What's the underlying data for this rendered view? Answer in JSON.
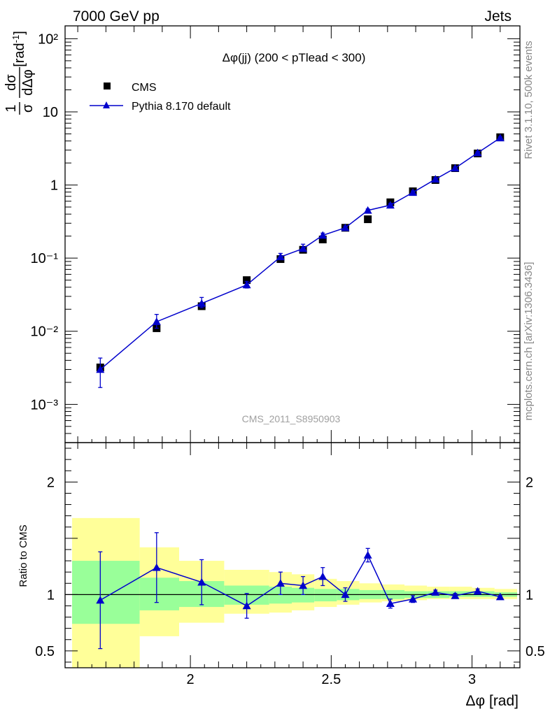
{
  "header": {
    "left": "7000 GeV pp",
    "right": "Jets"
  },
  "side_text": {
    "rivet": "Rivet 3.1.10,  500k events",
    "mcplots": "mcplots.cern.ch [arXiv:1306.3436]"
  },
  "watermark": "CMS_2011_S8950903",
  "colors": {
    "data": "#000000",
    "mc": "#0000cc",
    "band_inner": "#99ff99",
    "band_outer": "#ffff99"
  },
  "chart_data": [
    {
      "type": "scatter",
      "panel": "main",
      "title": "Δφ(jj) (200 < pTlead <  300)",
      "ylabel": "1/σ dσ/dΔφ [rad⁻¹]",
      "yscale": "log",
      "ylim": [
        0.0003,
        150
      ],
      "xlim": [
        1.555,
        3.17
      ],
      "ytick_labels": [
        "10⁻³",
        "10⁻²",
        "10⁻¹",
        "1",
        "10",
        "10²"
      ],
      "legend": [
        "CMS",
        "Pythia 8.170 default"
      ],
      "legend_position": "top-left",
      "series": [
        {
          "name": "CMS",
          "marker": "square",
          "x": [
            1.68,
            1.88,
            2.04,
            2.2,
            2.32,
            2.4,
            2.47,
            2.55,
            2.63,
            2.71,
            2.79,
            2.87,
            2.94,
            3.02,
            3.1
          ],
          "y": [
            0.0032,
            0.011,
            0.022,
            0.05,
            0.097,
            0.13,
            0.18,
            0.26,
            0.34,
            0.58,
            0.82,
            1.17,
            1.7,
            2.7,
            4.5
          ]
        },
        {
          "name": "Pythia 8.170 default",
          "marker": "triangle",
          "x": [
            1.68,
            1.88,
            2.04,
            2.2,
            2.32,
            2.4,
            2.47,
            2.55,
            2.63,
            2.71,
            2.79,
            2.87,
            2.94,
            3.02,
            3.1
          ],
          "y": [
            0.003,
            0.0135,
            0.024,
            0.043,
            0.104,
            0.135,
            0.205,
            0.26,
            0.45,
            0.53,
            0.79,
            1.2,
            1.7,
            2.75,
            4.4
          ],
          "err_low": [
            0.0013,
            0.0025,
            0.003,
            0.004,
            0.008,
            0.01,
            0.01,
            0.015,
            0.02,
            0.03,
            0.04,
            0.05,
            0.06,
            0.1,
            0.15
          ],
          "err_high": [
            0.0013,
            0.0035,
            0.005,
            0.005,
            0.012,
            0.02,
            0.015,
            0.015,
            0.02,
            0.03,
            0.04,
            0.05,
            0.06,
            0.1,
            0.15
          ]
        }
      ]
    },
    {
      "type": "line",
      "panel": "ratio",
      "ylabel": "Ratio to CMS",
      "xlabel": "Δφ [rad]",
      "ylim": [
        0.35,
        2.35
      ],
      "yticks": [
        0.5,
        1,
        2
      ],
      "ytick_labels": [
        "0.5",
        "1",
        "2"
      ],
      "xticks": [
        2,
        2.5,
        3
      ],
      "xtick_labels": [
        "2",
        "2.5",
        "3"
      ],
      "reference_line": 1,
      "bands": [
        {
          "x0": 1.58,
          "x1": 1.82,
          "inner": [
            0.74,
            1.3
          ],
          "outer": [
            0.33,
            1.68
          ]
        },
        {
          "x0": 1.82,
          "x1": 1.96,
          "inner": [
            0.86,
            1.15
          ],
          "outer": [
            0.63,
            1.42
          ]
        },
        {
          "x0": 1.96,
          "x1": 2.12,
          "inner": [
            0.89,
            1.12
          ],
          "outer": [
            0.75,
            1.3
          ]
        },
        {
          "x0": 2.12,
          "x1": 2.28,
          "inner": [
            0.91,
            1.08
          ],
          "outer": [
            0.83,
            1.22
          ]
        },
        {
          "x0": 2.28,
          "x1": 2.36,
          "inner": [
            0.92,
            1.07
          ],
          "outer": [
            0.84,
            1.2
          ]
        },
        {
          "x0": 2.36,
          "x1": 2.44,
          "inner": [
            0.93,
            1.06
          ],
          "outer": [
            0.86,
            1.18
          ]
        },
        {
          "x0": 2.44,
          "x1": 2.52,
          "inner": [
            0.94,
            1.05
          ],
          "outer": [
            0.89,
            1.14
          ]
        },
        {
          "x0": 2.52,
          "x1": 2.6,
          "inner": [
            0.95,
            1.05
          ],
          "outer": [
            0.91,
            1.12
          ]
        },
        {
          "x0": 2.6,
          "x1": 2.68,
          "inner": [
            0.96,
            1.04
          ],
          "outer": [
            0.93,
            1.1
          ]
        },
        {
          "x0": 2.68,
          "x1": 2.76,
          "inner": [
            0.96,
            1.04
          ],
          "outer": [
            0.94,
            1.09
          ]
        },
        {
          "x0": 2.76,
          "x1": 2.84,
          "inner": [
            0.97,
            1.03
          ],
          "outer": [
            0.95,
            1.08
          ]
        },
        {
          "x0": 2.84,
          "x1": 2.92,
          "inner": [
            0.97,
            1.03
          ],
          "outer": [
            0.96,
            1.07
          ]
        },
        {
          "x0": 2.92,
          "x1": 3.0,
          "inner": [
            0.98,
            1.03
          ],
          "outer": [
            0.96,
            1.07
          ]
        },
        {
          "x0": 3.0,
          "x1": 3.08,
          "inner": [
            0.98,
            1.03
          ],
          "outer": [
            0.96,
            1.06
          ]
        },
        {
          "x0": 3.08,
          "x1": 3.16,
          "inner": [
            0.98,
            1.02
          ],
          "outer": [
            0.96,
            1.05
          ]
        }
      ],
      "series": [
        {
          "name": "Pythia 8.170 default",
          "marker": "triangle",
          "x": [
            1.68,
            1.88,
            2.04,
            2.2,
            2.32,
            2.4,
            2.47,
            2.55,
            2.63,
            2.71,
            2.79,
            2.87,
            2.94,
            3.02,
            3.1
          ],
          "y": [
            0.95,
            1.24,
            1.11,
            0.9,
            1.1,
            1.08,
            1.16,
            1.0,
            1.35,
            0.92,
            0.96,
            1.02,
            0.99,
            1.03,
            0.98
          ],
          "err_low": [
            0.43,
            0.31,
            0.2,
            0.11,
            0.1,
            0.08,
            0.08,
            0.06,
            0.06,
            0.04,
            0.03,
            0.02,
            0.02,
            0.02,
            0.01
          ],
          "err_high": [
            0.43,
            0.31,
            0.2,
            0.11,
            0.1,
            0.08,
            0.08,
            0.06,
            0.06,
            0.04,
            0.03,
            0.02,
            0.02,
            0.02,
            0.01
          ]
        }
      ]
    }
  ]
}
